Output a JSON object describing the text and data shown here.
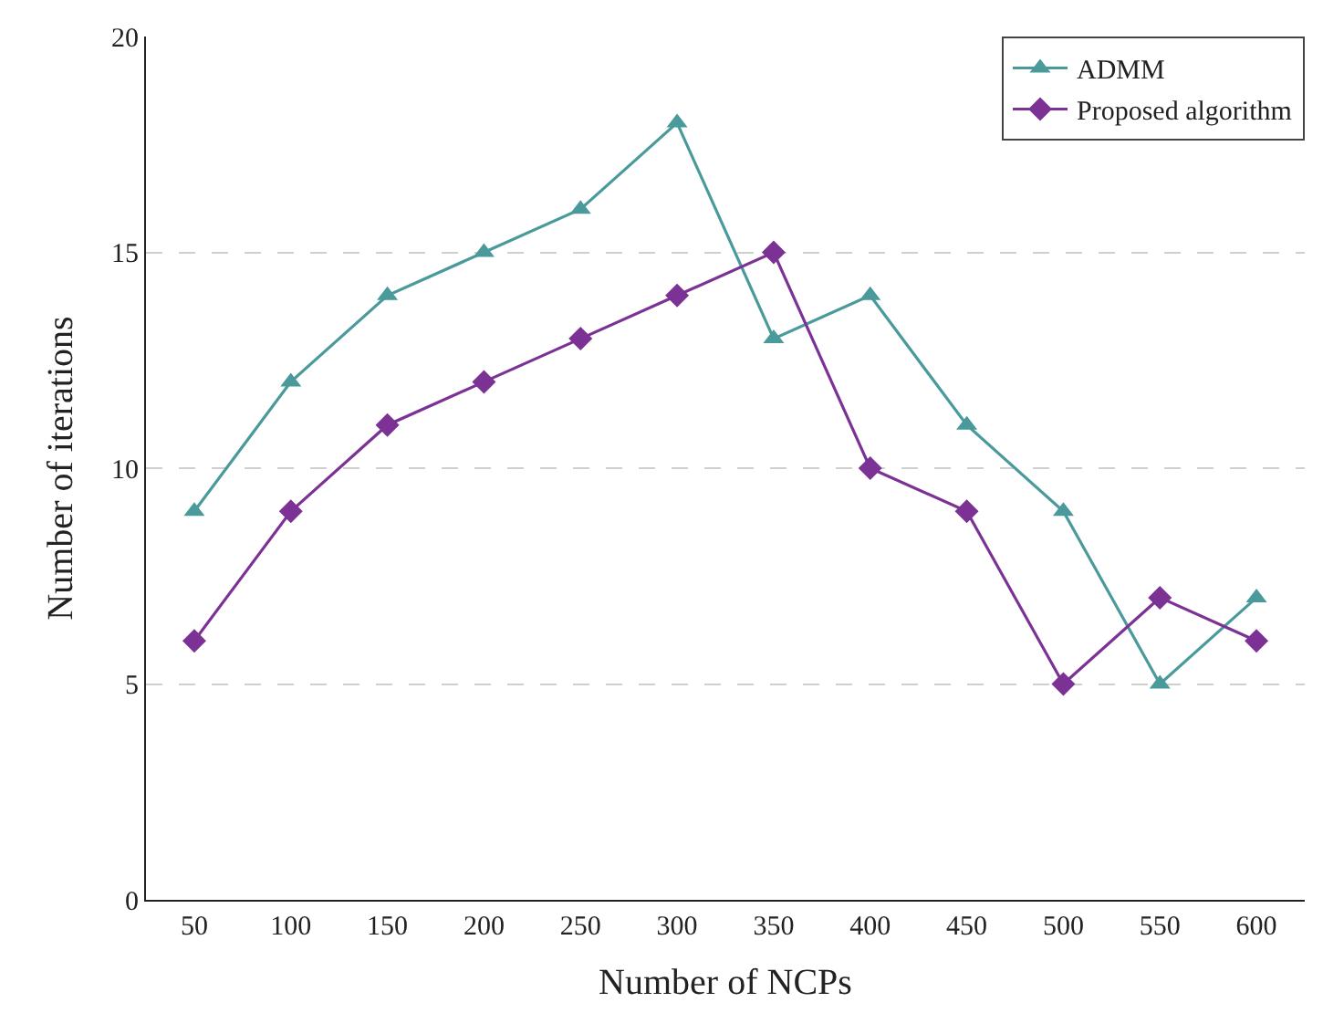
{
  "chart_data": {
    "type": "line",
    "xlabel": "Number of NCPs",
    "ylabel": "Number of iterations",
    "categories": [
      "50",
      "100",
      "150",
      "200",
      "250",
      "300",
      "350",
      "400",
      "450",
      "500",
      "550",
      "600"
    ],
    "series": [
      {
        "name": "ADMM",
        "color": "#4a9a9c",
        "marker": "triangle",
        "values": [
          9,
          12,
          14,
          15,
          16,
          18,
          13,
          14,
          11,
          9,
          5,
          7
        ]
      },
      {
        "name": "Proposed algorithm",
        "color": "#7b3294",
        "marker": "diamond",
        "values": [
          6,
          9,
          11,
          12,
          13,
          14,
          15,
          10,
          9,
          5,
          7,
          6
        ]
      }
    ],
    "ylim": [
      0,
      20
    ],
    "yticks": [
      0,
      5,
      10,
      15,
      20
    ],
    "grid": "y",
    "legend": "top right",
    "line_style": "solid"
  }
}
